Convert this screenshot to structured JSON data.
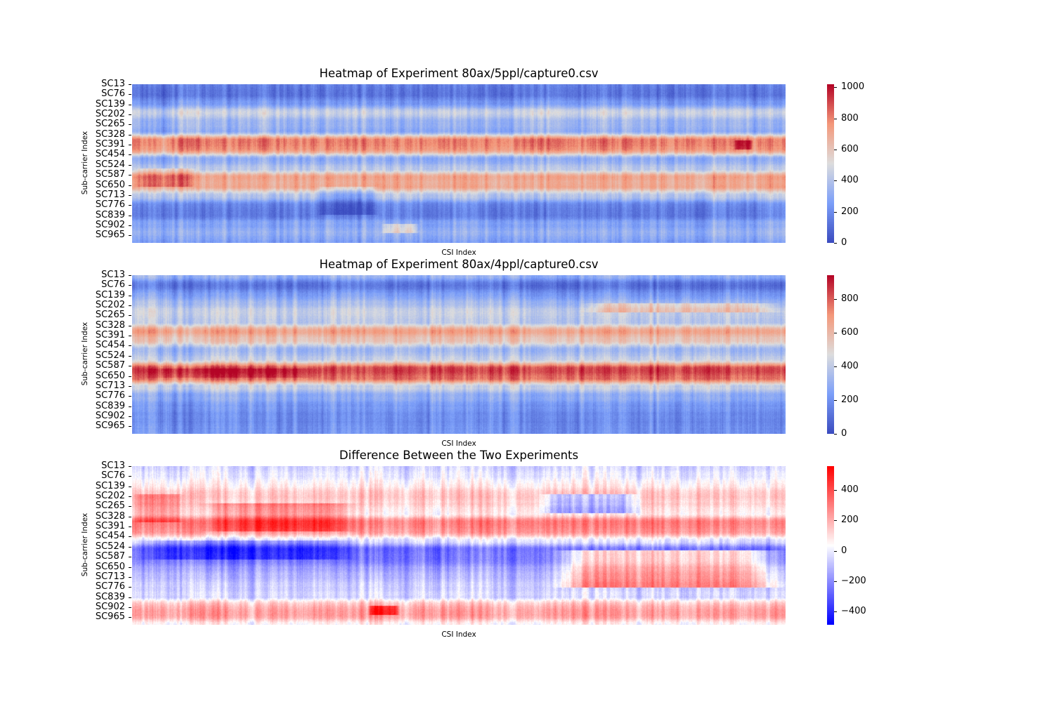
{
  "chart_data": [
    {
      "type": "heatmap",
      "title": "Heatmap of Experiment 80ax/5ppl/capture0.csv",
      "xlabel": "CSI Index",
      "ylabel": "Sub-carrier Index",
      "yticks": [
        "SC13",
        "SC76",
        "SC139",
        "SC202",
        "SC265",
        "SC328",
        "SC391",
        "SC454",
        "SC524",
        "SC587",
        "SC650",
        "SC713",
        "SC776",
        "SC839",
        "SC902",
        "SC965"
      ],
      "colormap": "coolwarm",
      "vmin": 0,
      "vmax": 1020,
      "colorbar_ticks": [
        0,
        200,
        400,
        600,
        800,
        1000
      ],
      "colorbar_tick_labels": [
        "0",
        "200",
        "400",
        "600",
        "800",
        "1000"
      ],
      "row_profile": [
        170,
        120,
        240,
        480,
        360,
        300,
        820,
        780,
        300,
        420,
        720,
        700,
        390,
        180,
        140,
        280,
        330,
        260
      ],
      "events": [
        {
          "from": 0.28,
          "to": 0.38,
          "rows": [
            11,
            14
          ],
          "delta": -140
        },
        {
          "from": 0.38,
          "to": 0.44,
          "rows": [
            15,
            16
          ],
          "delta": 200
        },
        {
          "from": 0.0,
          "to": 0.1,
          "rows": [
            9,
            11
          ],
          "delta": 150
        },
        {
          "from": 0.92,
          "to": 0.95,
          "rows": [
            6,
            7
          ],
          "delta": 180
        }
      ]
    },
    {
      "type": "heatmap",
      "title": "Heatmap of Experiment 80ax/4ppl/capture0.csv",
      "xlabel": "CSI Index",
      "ylabel": "Sub-carrier Index",
      "yticks": [
        "SC13",
        "SC76",
        "SC139",
        "SC202",
        "SC265",
        "SC328",
        "SC391",
        "SC454",
        "SC524",
        "SC587",
        "SC650",
        "SC713",
        "SC776",
        "SC839",
        "SC902",
        "SC965"
      ],
      "colormap": "coolwarm",
      "vmin": 0,
      "vmax": 940,
      "colorbar_ticks": [
        0,
        200,
        400,
        600,
        800
      ],
      "colorbar_tick_labels": [
        "0",
        "200",
        "400",
        "600",
        "800"
      ],
      "row_profile": [
        300,
        110,
        220,
        330,
        420,
        380,
        680,
        560,
        320,
        420,
        840,
        800,
        420,
        270,
        220,
        200,
        190,
        210
      ],
      "events": [
        {
          "from": 0.68,
          "to": 1.0,
          "rows": [
            3,
            4
          ],
          "delta": 180
        },
        {
          "from": 0.0,
          "to": 0.3,
          "rows": [
            10,
            11
          ],
          "delta": 80
        }
      ]
    },
    {
      "type": "heatmap",
      "title": "Difference Between the Two Experiments",
      "xlabel": "CSI Index",
      "ylabel": "Sub-carrier Index",
      "yticks": [
        "SC13",
        "SC76",
        "SC139",
        "SC202",
        "SC265",
        "SC328",
        "SC391",
        "SC454",
        "SC524",
        "SC587",
        "SC650",
        "SC713",
        "SC776",
        "SC839",
        "SC902",
        "SC965"
      ],
      "colormap": "bwr",
      "vmin": -490,
      "vmax": 560,
      "colorbar_ticks": [
        -400,
        -200,
        0,
        200,
        400
      ],
      "colorbar_tick_labels": [
        "−400",
        "−200",
        "0",
        "200",
        "400"
      ],
      "row_profile": [
        -40,
        10,
        60,
        160,
        120,
        60,
        300,
        260,
        -20,
        -260,
        -240,
        -150,
        -100,
        -60,
        -40,
        200,
        240,
        60
      ],
      "events": [
        {
          "from": 0.0,
          "to": 0.08,
          "rows": [
            3,
            6
          ],
          "delta": 150
        },
        {
          "from": 0.1,
          "to": 0.35,
          "rows": [
            4,
            7
          ],
          "delta": 180
        },
        {
          "from": 0.62,
          "to": 0.78,
          "rows": [
            3,
            5
          ],
          "delta": -260
        },
        {
          "from": 0.64,
          "to": 1.0,
          "rows": [
            9,
            13
          ],
          "delta": 360
        },
        {
          "from": 0.36,
          "to": 0.41,
          "rows": [
            15,
            16
          ],
          "delta": 260
        },
        {
          "from": 0.0,
          "to": 0.35,
          "rows": [
            8,
            10
          ],
          "delta": -150
        }
      ]
    }
  ]
}
